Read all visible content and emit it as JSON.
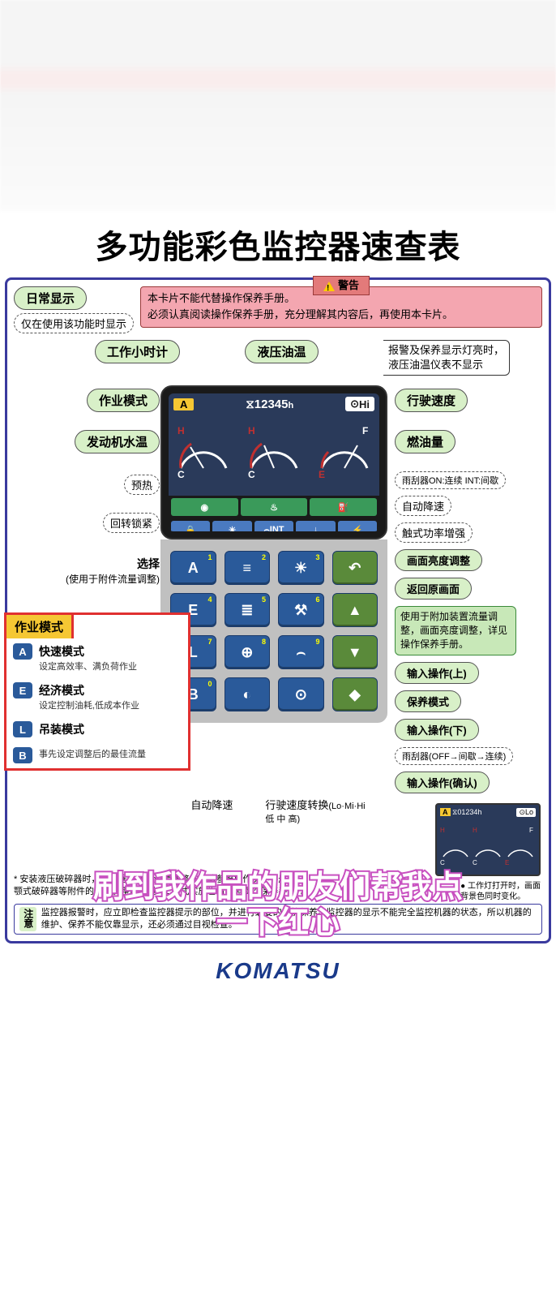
{
  "title": "多功能彩色监控器速查表",
  "daily_display": "日常显示",
  "daily_sub": "仅在使用该功能时显示",
  "warning": {
    "label": "警告",
    "line1": "本卡片不能代替操作保养手册。",
    "line2": "必须认真阅读操作保养手册，充分理解其内容后，再使用本卡片。"
  },
  "labels": {
    "work_hour": "工作小时计",
    "hyd_temp": "液压油温",
    "alarm_note": "报警及保养显示灯亮时，\n液压油温仪表不显示",
    "work_mode": "作业模式",
    "travel_speed": "行驶速度",
    "coolant": "发动机水温",
    "fuel": "燃油量",
    "preheat": "预热",
    "wiper_note": "雨刮器ON:连续 INT:间歇",
    "swing_lock": "回转锁紧",
    "auto_decel": "自动降速",
    "power_boost": "触式功率增强",
    "select": "选择",
    "select_sub": "(使用于附件流量调整)",
    "brightness": "画面亮度调整",
    "return": "返回原画面",
    "mode_title": "作业模式",
    "green_tip": "使用于附加装置流量调整，画面亮度调整，详见操作保养手册。",
    "input_up": "输入操作(上)",
    "maint": "保养模式",
    "input_down": "输入操作(下)",
    "wiper2": "雨刮器(OFF→间歇→连续)",
    "input_confirm": "输入操作(确认)",
    "auto_decel2": "自动降速",
    "speed_switch": "行驶速度转换",
    "speed_levels": "(Lo·Mi·Hi\n低  中  高)",
    "thumb_note": "● 工作灯打开时，画面\n背景色同时变化。"
  },
  "modes": [
    {
      "letter": "A",
      "name": "快速模式",
      "desc": "设定高效率、满负荷作业"
    },
    {
      "letter": "E",
      "name": "经济模式",
      "desc": "设定控制油耗,低成本作业"
    },
    {
      "letter": "L",
      "name": "吊装模式",
      "desc": ""
    },
    {
      "letter": "B",
      "name": "",
      "desc": "事先设定调整后的最佳流量"
    }
  ],
  "lcd": {
    "hour": "12345",
    "hour_unit": "h",
    "hi": "Hi",
    "a": "A",
    "thumb_hour": "01234",
    "lo": "Lo",
    "letters": {
      "H": "H",
      "C": "C",
      "F": "F",
      "E": "E"
    }
  },
  "footnote": "* 安装液压破碎器时，破碎器模式的流量调整方法请参照操作保养手册。\n颚式破碎器等附件的流量调整应通过A·E模式实施也请参照操作保养手册）。",
  "notice": {
    "label": "注意",
    "text": "监控器报警时，应立即检查监控器提示的部位，并进行必要的维护保养。监控器的显示不能完全监控机器的状态，所以机器的维护、保养不能仅靠显示，还必须通过目视检查。"
  },
  "brand": "KOMATSU",
  "overlay": "刷到我作品的朋友们帮我点\n一下红心",
  "keypad": [
    {
      "t": "A",
      "n": "1"
    },
    {
      "t": "≡",
      "n": "2"
    },
    {
      "t": "☀",
      "n": "3"
    },
    {
      "t": "↶",
      "c": "green"
    },
    {
      "t": "E",
      "n": "4"
    },
    {
      "t": "≣",
      "n": "5"
    },
    {
      "t": "⚒",
      "n": "6"
    },
    {
      "t": "▲",
      "c": "green"
    },
    {
      "t": "L",
      "n": "7"
    },
    {
      "t": "⊕",
      "n": "8"
    },
    {
      "t": "⌢",
      "n": "9"
    },
    {
      "t": "▼",
      "c": "green"
    },
    {
      "t": "B",
      "n": "0"
    },
    {
      "t": "◐"
    },
    {
      "t": "⊙"
    },
    {
      "t": "◆",
      "c": "green"
    }
  ],
  "colors": {
    "pill_bg": "#d8f0c8",
    "warn_bg": "#f4a6b0",
    "key_blue": "#2a5a9a",
    "key_green": "#5a8a3a",
    "lcd_bg": "#2a3a5a",
    "border": "#3a3a9e",
    "yellow": "#f5c733",
    "red": "#e03030"
  }
}
